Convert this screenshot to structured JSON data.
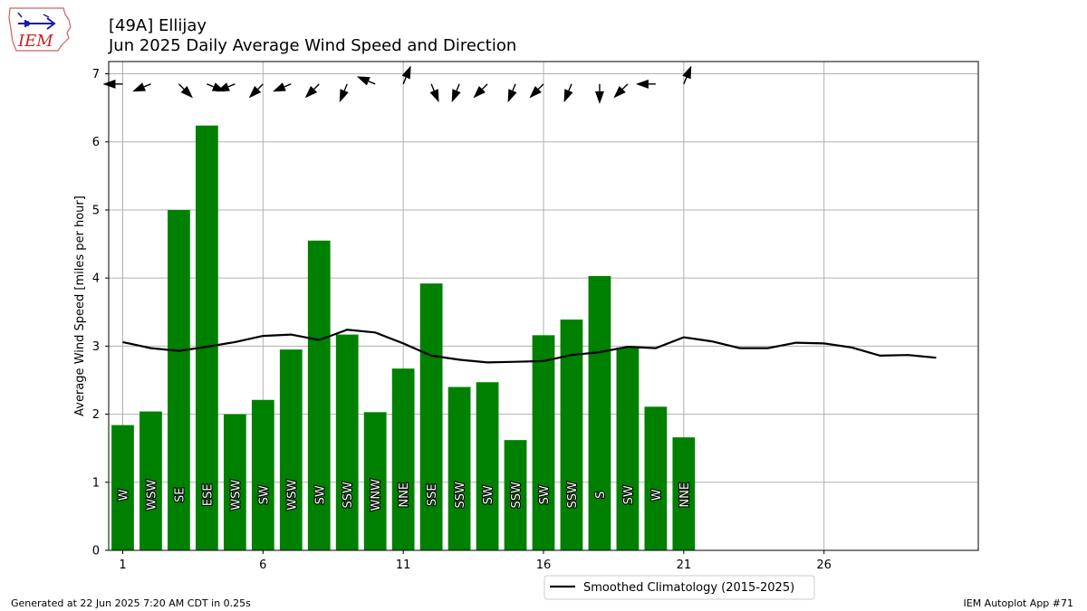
{
  "logo": {
    "text": "IEM"
  },
  "header": {
    "station": "[49A] Ellijay",
    "subtitle": "Jun 2025 Daily Average Wind Speed and Direction"
  },
  "footer": {
    "generated": "Generated at 22 Jun 2025 7:20 AM CDT in 0.25s",
    "app": "IEM Autoplot App #71"
  },
  "colors": {
    "bar": "#008000",
    "line": "#000000",
    "grid": "#b0b0b0"
  },
  "chart_data": {
    "type": "bar",
    "ylabel": "Average Wind Speed [miles per hour]",
    "xlabel": "",
    "xlim": [
      0.5,
      31.5
    ],
    "ylim": [
      0,
      7.18
    ],
    "xticks": [
      1,
      6,
      11,
      16,
      21,
      26
    ],
    "yticks": [
      0,
      1,
      2,
      3,
      4,
      5,
      6,
      7
    ],
    "grid": true,
    "legend_position": "bottom-center",
    "days": [
      1,
      2,
      3,
      4,
      5,
      6,
      7,
      8,
      9,
      10,
      11,
      12,
      13,
      14,
      15,
      16,
      17,
      18,
      19,
      20,
      21
    ],
    "values": [
      1.84,
      2.04,
      5.0,
      6.24,
      2.0,
      2.21,
      2.95,
      4.55,
      3.17,
      2.03,
      2.67,
      3.92,
      2.4,
      2.47,
      1.62,
      3.16,
      3.39,
      4.03,
      2.98,
      2.11,
      1.66
    ],
    "direction_labels": [
      "W",
      "WSW",
      "SE",
      "ESE",
      "WSW",
      "SW",
      "WSW",
      "SW",
      "SSW",
      "WNW",
      "NNE",
      "SSE",
      "SSW",
      "SW",
      "SSW",
      "SW",
      "SSW",
      "S",
      "SW",
      "W",
      "NNE"
    ],
    "arrow_directions_deg": [
      270,
      247.5,
      135,
      112.5,
      247.5,
      225,
      247.5,
      225,
      202.5,
      292.5,
      22.5,
      157.5,
      202.5,
      225,
      202.5,
      225,
      202.5,
      180,
      225,
      270,
      22.5
    ],
    "climatology": {
      "name": "Smoothed Climatology (2015-2025)",
      "days": [
        1,
        2,
        3,
        4,
        5,
        6,
        7,
        8,
        9,
        10,
        11,
        12,
        13,
        14,
        15,
        16,
        17,
        18,
        19,
        20,
        21,
        22,
        23,
        24,
        25,
        26,
        27,
        28,
        29,
        30
      ],
      "values": [
        3.06,
        2.97,
        2.93,
        2.99,
        3.06,
        3.15,
        3.17,
        3.09,
        3.24,
        3.2,
        3.04,
        2.86,
        2.8,
        2.76,
        2.77,
        2.78,
        2.87,
        2.91,
        2.99,
        2.97,
        3.13,
        3.07,
        2.97,
        2.97,
        3.05,
        3.04,
        2.98,
        2.86,
        2.87,
        2.83
      ]
    }
  }
}
